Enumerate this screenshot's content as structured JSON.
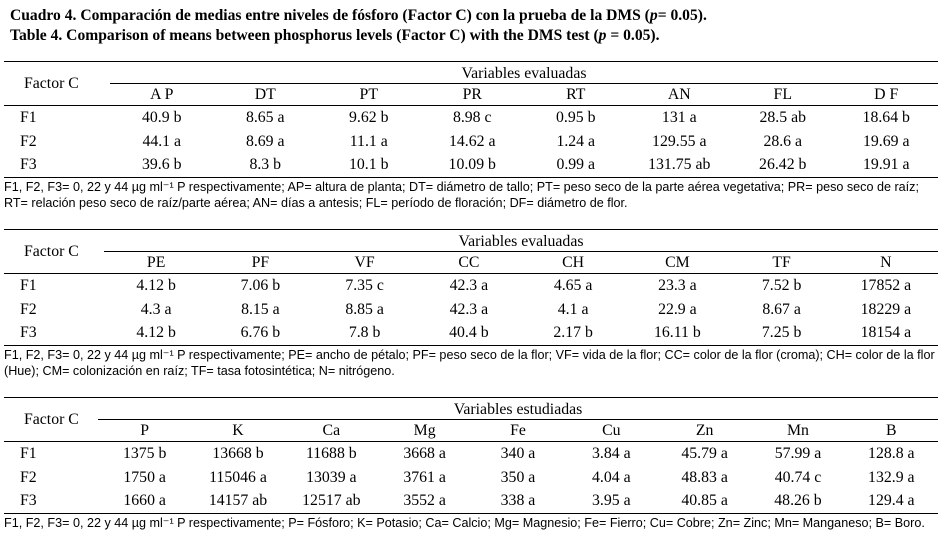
{
  "captions": {
    "es_prefix": "Cuadro 4. Comparación de medias entre niveles de fósforo (Factor C) con la prueba de la DMS (",
    "es_p": "p",
    "es_suffix": "= 0.05).",
    "en_prefix": "Table 4. Comparison of means between phosphorus levels (Factor C) with the DMS test (",
    "en_p": "p",
    "en_suffix": " = 0.05)."
  },
  "tables": [
    {
      "factor_label": "Factor C",
      "group_label": "Variables evaluadas",
      "columns": [
        "A P",
        "DT",
        "PT",
        "PR",
        "RT",
        "AN",
        "FL",
        "D F"
      ],
      "rows": [
        {
          "label": "F1",
          "values": [
            "40.9 b",
            "8.65 a",
            "9.62 b",
            "8.98 c",
            "0.95 b",
            "131 a",
            "28.5 ab",
            "18.64 b"
          ]
        },
        {
          "label": "F2",
          "values": [
            "44.1 a",
            "8.69 a",
            "11.1 a",
            "14.62 a",
            "1.24 a",
            "129.55 a",
            "28.6 a",
            "19.69 a"
          ]
        },
        {
          "label": "F3",
          "values": [
            "39.6 b",
            "8.3 b",
            "10.1 b",
            "10.09 b",
            "0.99 a",
            "131.75 ab",
            "26.42 b",
            "19.91 a"
          ]
        }
      ],
      "note": "F1, F2, F3= 0, 22 y 44 µg ml⁻¹ P respectivamente; AP= altura de planta; DT= diámetro de tallo; PT= peso seco de la parte aérea vegetativa; PR= peso seco de raíz; RT= relación peso seco de raíz/parte aérea; AN= días a antesis; FL= período de floración; DF= diámetro de flor."
    },
    {
      "factor_label": "Factor C",
      "group_label": "Variables evaluadas",
      "columns": [
        "PE",
        "PF",
        "VF",
        "CC",
        "CH",
        "CM",
        "TF",
        "N"
      ],
      "rows": [
        {
          "label": "F1",
          "values": [
            "4.12 b",
            "7.06 b",
            "7.35 c",
            "42.3 a",
            "4.65 a",
            "23.3 a",
            "7.52 b",
            "17852 a"
          ]
        },
        {
          "label": "F2",
          "values": [
            "4.3 a",
            "8.15 a",
            "8.85 a",
            "42.3 a",
            "4.1 a",
            "22.9 a",
            "8.67 a",
            "18229 a"
          ]
        },
        {
          "label": "F3",
          "values": [
            "4.12 b",
            "6.76 b",
            "7.8 b",
            "40.4 b",
            "2.17 b",
            "16.11 b",
            "7.25 b",
            "18154 a"
          ]
        }
      ],
      "note": "F1, F2, F3= 0, 22 y 44 µg ml⁻¹ P respectivamente; PE= ancho de pétalo; PF= peso seco de la flor; VF= vida de la flor; CC= color de la flor (croma); CH= color de la flor (Hue); CM= colonización en raíz; TF= tasa fotosintética; N= nitrógeno."
    },
    {
      "factor_label": "Factor C",
      "group_label": "Variables estudiadas",
      "columns": [
        "P",
        "K",
        "Ca",
        "Mg",
        "Fe",
        "Cu",
        "Zn",
        "Mn",
        "B"
      ],
      "rows": [
        {
          "label": "F1",
          "values": [
            "1375 b",
            "13668 b",
            "11688 b",
            "3668 a",
            "340 a",
            "3.84 a",
            "45.79 a",
            "57.99 a",
            "128.8 a"
          ]
        },
        {
          "label": "F2",
          "values": [
            "1750 a",
            "115046 a",
            "13039 a",
            "3761 a",
            "350 a",
            "4.04 a",
            "48.83 a",
            "40.74 c",
            "132.9 a"
          ]
        },
        {
          "label": "F3",
          "values": [
            "1660 a",
            "14157 ab",
            "12517 ab",
            "3552 a",
            "338 a",
            "3.95 a",
            "40.85 a",
            "48.26 b",
            "129.4 a"
          ]
        }
      ],
      "note": "F1, F2, F3= 0, 22 y 44 µg ml⁻¹ P respectivamente; P= Fósforo; K= Potasio; Ca= Calcio; Mg= Magnesio; Fe= Fierro; Cu= Cobre; Zn= Zinc; Mn= Manganeso; B= Boro."
    }
  ]
}
